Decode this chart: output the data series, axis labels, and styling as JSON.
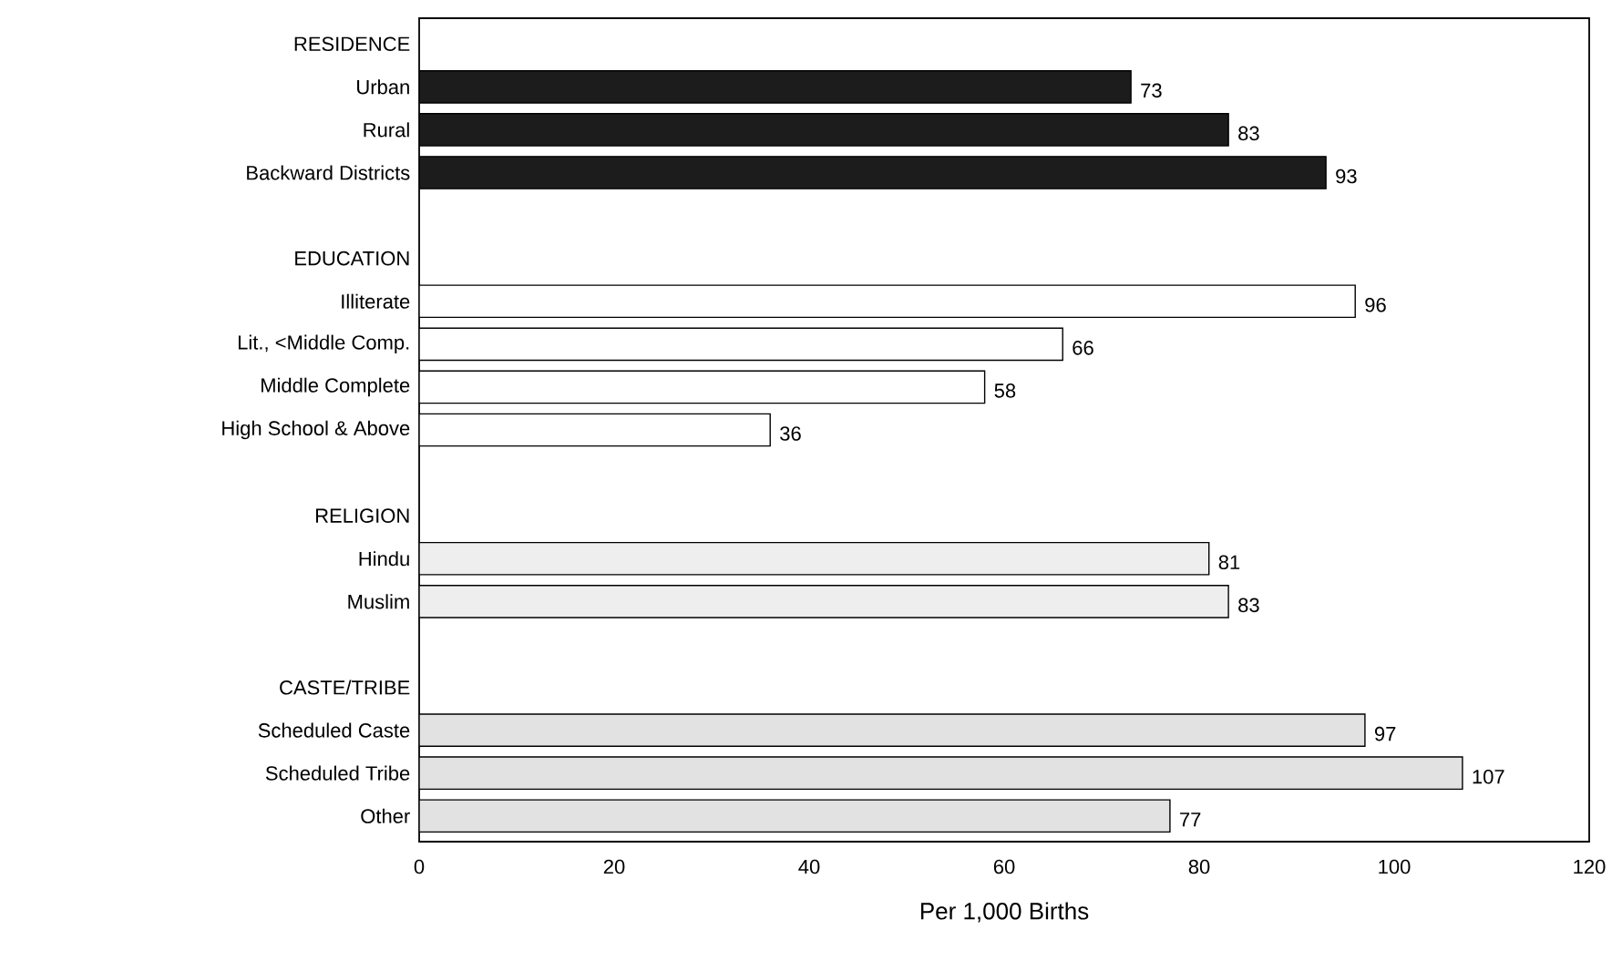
{
  "chart_data": {
    "type": "bar",
    "orientation": "horizontal",
    "xlabel": "Per 1,000 Births",
    "categories": [
      "RESIDENCE",
      "Urban",
      "Rural",
      "Backward Districts",
      null,
      "EDUCATION",
      "Illiterate",
      "Lit., <Middle Comp.",
      "Middle Complete",
      "High School & Above",
      null,
      "RELIGION",
      "Hindu",
      "Muslim",
      null,
      "CASTE/TRIBE",
      "Scheduled Caste",
      "Scheduled Tribe",
      "Other"
    ],
    "values": [
      null,
      73,
      83,
      93,
      null,
      null,
      96,
      66,
      58,
      36,
      null,
      null,
      81,
      83,
      null,
      null,
      97,
      107,
      77
    ],
    "colors": [
      null,
      "#1c1c1c",
      "#1c1c1c",
      "#1c1c1c",
      null,
      null,
      "#ffffff",
      "#ffffff",
      "#ffffff",
      "#ffffff",
      null,
      null,
      "#eeeeee",
      "#eeeeee",
      null,
      null,
      "#e2e2e2",
      "#e2e2e2",
      "#e2e2e2"
    ],
    "data_labels": true,
    "xlim": [
      0,
      120
    ],
    "xticks": [
      0,
      20,
      40,
      60,
      80,
      100,
      120
    ]
  }
}
